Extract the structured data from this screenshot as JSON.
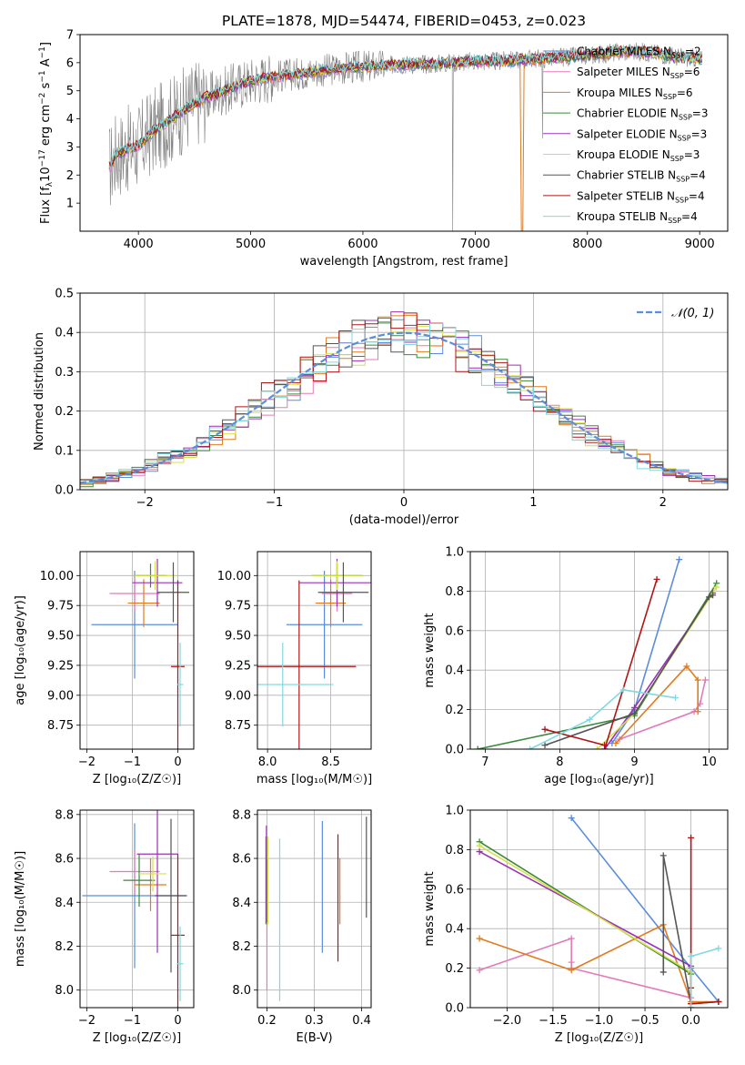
{
  "figure_title": "PLATE=1878, MJD=54474, FIBERID=0453, z=0.023",
  "colors": {
    "Chabrier MILES": "#5b8ddb",
    "Salpeter MILES": "#e27bb8",
    "Kroupa MILES": "#e07b20",
    "Chabrier ELODIE": "#3a8a3a",
    "Salpeter ELODIE": "#9b30b8",
    "Kroupa ELODIE": "#d7e04a",
    "Chabrier STELIB": "#555555",
    "Salpeter STELIB": "#b01515",
    "Kroupa STELIB": "#7fd9df",
    "data": "#808080",
    "normal": "#5b8ddb"
  },
  "chart_data": [
    {
      "id": "spectrum",
      "type": "line",
      "title": "PLATE=1878, MJD=54474, FIBERID=0453, z=0.023",
      "xlabel": "wavelength [Angstrom, rest frame]",
      "ylabel_pre": "Flux [f",
      "ylabel_sub": "λ",
      "ylabel_mid": "10",
      "ylabel_sup": "−17",
      "ylabel_post": " erg cm",
      "ylabel_sup2": "−2",
      "ylabel_post2": " s",
      "ylabel_sup3": "−1",
      "ylabel_post3": " A",
      "ylabel_sup4": "−1",
      "ylabel_end": "]",
      "xlim": [
        3480,
        9250
      ],
      "ylim": [
        0,
        7
      ],
      "xticks": [
        4000,
        5000,
        6000,
        7000,
        8000,
        9000
      ],
      "yticks": [
        1,
        2,
        3,
        4,
        5,
        6,
        7
      ],
      "continuum": {
        "x": [
          3750,
          3800,
          3900,
          4000,
          4100,
          4200,
          4300,
          4400,
          4500,
          4600,
          4800,
          5000,
          5200,
          5400,
          5600,
          5800,
          6000,
          6200,
          6400,
          6600,
          6800,
          7000,
          7200,
          7400,
          7600,
          7800,
          8000,
          8200,
          8400,
          8600,
          8800,
          9000,
          9200
        ],
        "y": [
          2.3,
          2.75,
          2.9,
          3.05,
          3.45,
          3.75,
          4.0,
          4.3,
          4.55,
          4.75,
          5.05,
          5.35,
          5.5,
          5.6,
          5.7,
          5.8,
          5.85,
          5.9,
          5.95,
          5.95,
          6.0,
          6.05,
          6.05,
          6.1,
          6.15,
          6.2,
          6.25,
          6.35,
          6.4,
          6.35,
          6.2,
          6.15,
          6.1
        ]
      },
      "legend": [
        {
          "name": "Chabrier MILES",
          "n": "2"
        },
        {
          "name": "Salpeter MILES",
          "n": "6"
        },
        {
          "name": "Kroupa MILES",
          "n": "6"
        },
        {
          "name": "Chabrier ELODIE",
          "n": "3"
        },
        {
          "name": "Salpeter ELODIE",
          "n": "3"
        },
        {
          "name": "Kroupa ELODIE",
          "n": "3"
        },
        {
          "name": "Chabrier STELIB",
          "n": "4"
        },
        {
          "name": "Salpeter STELIB",
          "n": "4"
        },
        {
          "name": "Kroupa STELIB",
          "n": "4"
        }
      ],
      "legend_nssp_label": "N",
      "legend_nssp_sub": "SSP",
      "legend_placement": "right",
      "grid": false
    },
    {
      "id": "residuals",
      "type": "histogram",
      "xlabel": "(data-model)/error",
      "ylabel": "Normed distribution",
      "xlim": [
        -2.5,
        2.5
      ],
      "ylim": [
        0,
        0.5
      ],
      "xticks": [
        -2,
        -1,
        0,
        1,
        2
      ],
      "yticks": [
        0.0,
        0.1,
        0.2,
        0.3,
        0.4,
        0.5
      ],
      "legend": [
        "𝒩(0, 1)"
      ],
      "legend_placement": "top-right",
      "grid": true
    },
    {
      "id": "age_vs_Z",
      "type": "errorbar",
      "xlabel": "Z [log₁₀(Z/Z☉)]",
      "ylabel": "age  [log₁₀(age/yr)]",
      "xlim": [
        -2.15,
        0.35
      ],
      "ylim": [
        8.55,
        10.2
      ],
      "xticks": [
        -2,
        -1,
        0
      ],
      "yticks": [
        8.75,
        9.0,
        9.25,
        9.5,
        9.75,
        10.0
      ],
      "grid": true,
      "points": [
        {
          "model": "Chabrier MILES",
          "x": -0.95,
          "xerr": 0.95,
          "y": 9.59,
          "yerr": 0.45
        },
        {
          "model": "Salpeter MILES",
          "x": -0.95,
          "xerr": 0.55,
          "y": 9.85,
          "yerr": 0.15
        },
        {
          "model": "Kroupa MILES",
          "x": -0.75,
          "xerr": 0.35,
          "y": 9.77,
          "yerr": 0.2
        },
        {
          "model": "Chabrier ELODIE",
          "x": -0.6,
          "xerr": 0.35,
          "y": 10.0,
          "yerr": 0.1
        },
        {
          "model": "Salpeter ELODIE",
          "x": -0.45,
          "xerr": 0.55,
          "y": 9.94,
          "yerr": 0.2
        },
        {
          "model": "Kroupa ELODIE",
          "x": -0.5,
          "xerr": 0.45,
          "y": 10.0,
          "yerr": 0.12
        },
        {
          "model": "Chabrier STELIB",
          "x": -0.1,
          "xerr": 0.35,
          "y": 9.86,
          "yerr": 0.25
        },
        {
          "model": "Salpeter STELIB",
          "x": 0.0,
          "xerr": 0.15,
          "y": 9.24,
          "yerr": 0.72
        },
        {
          "model": "Kroupa STELIB",
          "x": 0.05,
          "xerr": 0.07,
          "y": 9.09,
          "yerr": 0.35
        }
      ]
    },
    {
      "id": "age_vs_mass",
      "type": "errorbar",
      "xlabel": "mass [log₁₀(M/M☉)]",
      "ylabel": "",
      "xlim": [
        7.92,
        8.82
      ],
      "ylim": [
        8.55,
        10.2
      ],
      "xticks": [
        8.0,
        8.5
      ],
      "yticks": [
        8.75,
        9.0,
        9.25,
        9.5,
        9.75,
        10.0
      ],
      "grid": true,
      "points": [
        {
          "model": "Chabrier MILES",
          "x": 8.45,
          "xerr": 0.3,
          "y": 9.59,
          "yerr": 0.45
        },
        {
          "model": "Salpeter MILES",
          "x": 8.55,
          "xerr": 0.12,
          "y": 9.85,
          "yerr": 0.15
        },
        {
          "model": "Kroupa MILES",
          "x": 8.5,
          "xerr": 0.12,
          "y": 9.77,
          "yerr": 0.2
        },
        {
          "model": "Chabrier ELODIE",
          "x": 8.55,
          "xerr": 0.2,
          "y": 10.0,
          "yerr": 0.1
        },
        {
          "model": "Salpeter ELODIE",
          "x": 8.55,
          "xerr": 0.3,
          "y": 9.94,
          "yerr": 0.2
        },
        {
          "model": "Kroupa ELODIE",
          "x": 8.55,
          "xerr": 0.2,
          "y": 10.0,
          "yerr": 0.12
        },
        {
          "model": "Chabrier STELIB",
          "x": 8.6,
          "xerr": 0.2,
          "y": 9.86,
          "yerr": 0.25
        },
        {
          "model": "Salpeter STELIB",
          "x": 8.25,
          "xerr": 0.45,
          "y": 9.24,
          "yerr": 0.72
        },
        {
          "model": "Kroupa STELIB",
          "x": 8.12,
          "xerr": 0.4,
          "y": 9.09,
          "yerr": 0.35
        }
      ]
    },
    {
      "id": "weight_vs_age",
      "type": "line",
      "xlabel": "age  [log₁₀(age/yr)]",
      "ylabel": "mass weight",
      "xlim": [
        6.8,
        10.25
      ],
      "ylim": [
        0,
        1.0
      ],
      "xticks": [
        7,
        8,
        9,
        10
      ],
      "yticks": [
        0.0,
        0.2,
        0.4,
        0.6,
        0.8,
        1.0
      ],
      "grid": true,
      "series": [
        {
          "model": "Chabrier MILES",
          "x": [
            8.7,
            9.0,
            9.6
          ],
          "y": [
            0.03,
            0.2,
            0.96
          ]
        },
        {
          "model": "Salpeter MILES",
          "x": [
            8.8,
            9.8,
            9.88,
            9.95
          ],
          "y": [
            0.05,
            0.19,
            0.23,
            0.35
          ]
        },
        {
          "model": "Kroupa MILES",
          "x": [
            8.75,
            9.7,
            9.85,
            9.85
          ],
          "y": [
            0.03,
            0.42,
            0.35,
            0.19
          ]
        },
        {
          "model": "Chabrier ELODIE",
          "x": [
            6.9,
            9.0,
            10.1
          ],
          "y": [
            0.0,
            0.17,
            0.84
          ]
        },
        {
          "model": "Salpeter ELODIE",
          "x": [
            8.6,
            9.0,
            10.05
          ],
          "y": [
            0.0,
            0.21,
            0.79
          ]
        },
        {
          "model": "Kroupa ELODIE",
          "x": [
            8.5,
            9.0,
            10.1
          ],
          "y": [
            0.0,
            0.18,
            0.82
          ]
        },
        {
          "model": "Chabrier STELIB",
          "x": [
            7.8,
            9.0,
            10.0,
            10.05
          ],
          "y": [
            0.02,
            0.18,
            0.77,
            0.78
          ]
        },
        {
          "model": "Salpeter STELIB",
          "x": [
            7.8,
            8.6,
            8.6,
            9.3
          ],
          "y": [
            0.1,
            0.02,
            0.0,
            0.86
          ]
        },
        {
          "model": "Kroupa STELIB",
          "x": [
            7.6,
            8.4,
            8.85,
            9.55
          ],
          "y": [
            0.0,
            0.15,
            0.3,
            0.26
          ]
        }
      ]
    },
    {
      "id": "mass_vs_Z",
      "type": "errorbar",
      "xlabel": "Z [log₁₀(Z/Z☉)]",
      "ylabel": "mass [log₁₀(M/M☉)]",
      "xlim": [
        -2.15,
        0.35
      ],
      "ylim": [
        7.92,
        8.82
      ],
      "xticks": [
        -2,
        -1,
        0
      ],
      "yticks": [
        8.0,
        8.2,
        8.4,
        8.6,
        8.8
      ],
      "grid": true,
      "points": [
        {
          "model": "Chabrier MILES",
          "x": -0.95,
          "xerr": 1.15,
          "y": 8.43,
          "yerr": 0.33
        },
        {
          "model": "Salpeter MILES",
          "x": -0.95,
          "xerr": 0.55,
          "y": 8.54,
          "yerr": 0.1
        },
        {
          "model": "Kroupa MILES",
          "x": -0.6,
          "xerr": 0.35,
          "y": 8.48,
          "yerr": 0.12
        },
        {
          "model": "Chabrier ELODIE",
          "x": -0.85,
          "xerr": 0.35,
          "y": 8.5,
          "yerr": 0.12
        },
        {
          "model": "Salpeter ELODIE",
          "x": -0.45,
          "xerr": 0.45,
          "y": 8.62,
          "yerr": 0.45
        },
        {
          "model": "Kroupa ELODIE",
          "x": -0.55,
          "xerr": 0.3,
          "y": 8.53,
          "yerr": 0.08
        },
        {
          "model": "Chabrier STELIB",
          "x": -0.15,
          "xerr": 0.35,
          "y": 8.43,
          "yerr": 0.35
        },
        {
          "model": "Salpeter STELIB",
          "x": 0.0,
          "xerr": 0.15,
          "y": 8.25,
          "yerr": 0.37
        },
        {
          "model": "Kroupa STELIB",
          "x": 0.05,
          "xerr": 0.07,
          "y": 8.12,
          "yerr": 0.17
        }
      ]
    },
    {
      "id": "mass_vs_EBV",
      "type": "errorbar",
      "xlabel": "E(B-V)",
      "ylabel": "",
      "xlim": [
        0.18,
        0.42
      ],
      "ylim": [
        7.92,
        8.82
      ],
      "xticks": [
        0.2,
        0.3,
        0.4
      ],
      "yticks": [
        8.0,
        8.2,
        8.4,
        8.6,
        8.8
      ],
      "grid": true,
      "points": [
        {
          "model": "Chabrier MILES",
          "x": 0.317,
          "xerr": 0,
          "y": 8.47,
          "yerr": 0.3
        },
        {
          "model": "Salpeter MILES",
          "x": 0.2,
          "xerr": 0,
          "y": 8.3,
          "yerr": 0.3
        },
        {
          "model": "Kroupa MILES",
          "x": 0.354,
          "xerr": 0,
          "y": 8.45,
          "yerr": 0.15
        },
        {
          "model": "Chabrier ELODIE",
          "x": 0.198,
          "xerr": 0,
          "y": 8.5,
          "yerr": 0.2
        },
        {
          "model": "Salpeter ELODIE",
          "x": 0.199,
          "xerr": 0,
          "y": 8.53,
          "yerr": 0.22
        },
        {
          "model": "Kroupa ELODIE",
          "x": 0.202,
          "xerr": 0,
          "y": 8.5,
          "yerr": 0.2
        },
        {
          "model": "Chabrier STELIB",
          "x": 0.41,
          "xerr": 0,
          "y": 8.56,
          "yerr": 0.23
        },
        {
          "model": "Salpeter STELIB",
          "x": 0.35,
          "xerr": 0,
          "y": 8.42,
          "yerr": 0.29
        },
        {
          "model": "Kroupa STELIB",
          "x": 0.227,
          "xerr": 0,
          "y": 8.32,
          "yerr": 0.37
        }
      ]
    },
    {
      "id": "weight_vs_Z",
      "type": "line",
      "xlabel": "Z [log₁₀(Z/Z☉)]",
      "ylabel": "mass weight",
      "xlim": [
        -2.4,
        0.4
      ],
      "ylim": [
        0,
        1.0
      ],
      "xticks": [
        -2.0,
        -1.5,
        -1.0,
        -0.5,
        0.0
      ],
      "yticks": [
        0.0,
        0.2,
        0.4,
        0.6,
        0.8,
        1.0
      ],
      "grid": true,
      "series": [
        {
          "model": "Chabrier MILES",
          "x": [
            -1.3,
            0.0,
            0.3
          ],
          "y": [
            0.96,
            0.2,
            0.03
          ]
        },
        {
          "model": "Salpeter MILES",
          "x": [
            -2.3,
            -1.3,
            -1.3,
            -1.3,
            0.0
          ],
          "y": [
            0.19,
            0.35,
            0.23,
            0.2,
            0.05
          ]
        },
        {
          "model": "Kroupa MILES",
          "x": [
            -2.3,
            -1.3,
            -0.3,
            0.0,
            0.3
          ],
          "y": [
            0.35,
            0.19,
            0.42,
            0.03,
            0.03
          ]
        },
        {
          "model": "Chabrier ELODIE",
          "x": [
            -2.3,
            0.0,
            0.0
          ],
          "y": [
            0.84,
            0.17,
            0.0
          ]
        },
        {
          "model": "Salpeter ELODIE",
          "x": [
            -2.3,
            0.0,
            0.0
          ],
          "y": [
            0.79,
            0.21,
            0.0
          ]
        },
        {
          "model": "Kroupa ELODIE",
          "x": [
            -2.3,
            0.0,
            0.0
          ],
          "y": [
            0.82,
            0.18,
            0.0
          ]
        },
        {
          "model": "Chabrier STELIB",
          "x": [
            -0.3,
            -0.3,
            0.0,
            0.3
          ],
          "y": [
            0.18,
            0.77,
            0.02,
            0.03
          ]
        },
        {
          "model": "Salpeter STELIB",
          "x": [
            0.0,
            0.0,
            0.0,
            0.3
          ],
          "y": [
            0.86,
            0.1,
            0.02,
            0.03
          ]
        },
        {
          "model": "Kroupa STELIB",
          "x": [
            0.0,
            0.0,
            0.3
          ],
          "y": [
            0.0,
            0.26,
            0.3
          ]
        }
      ]
    }
  ]
}
